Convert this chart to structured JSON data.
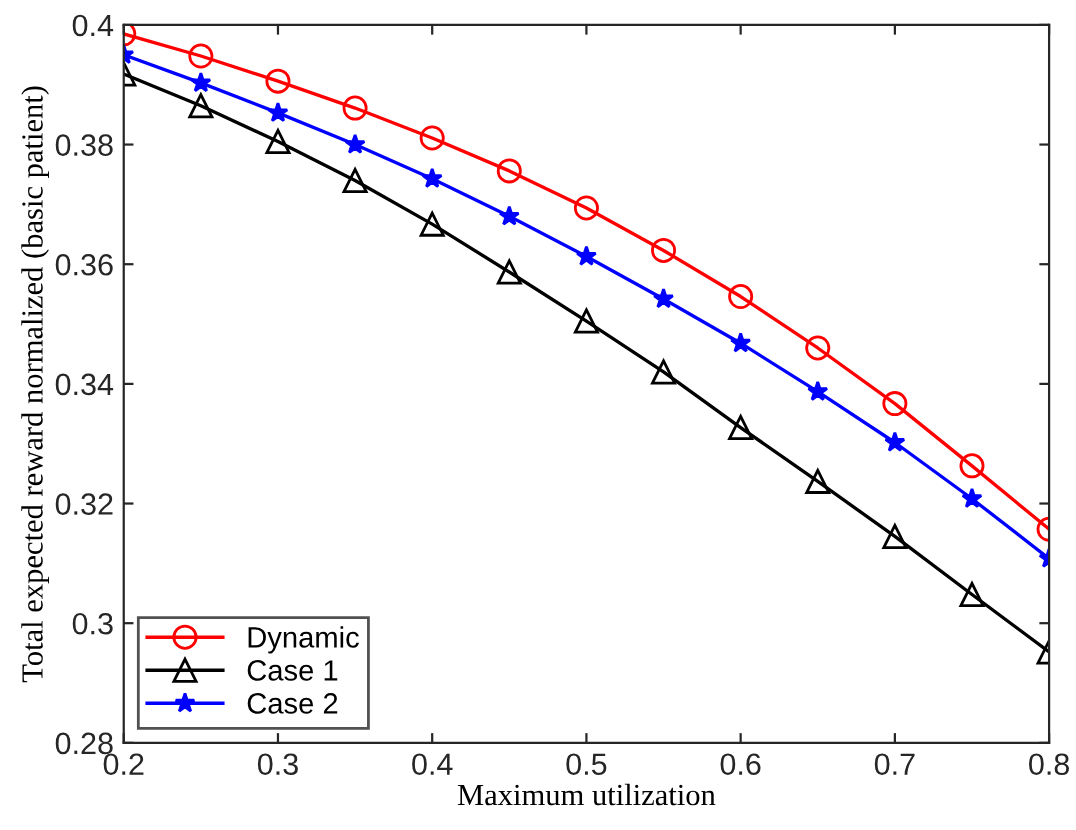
{
  "chart_data": {
    "type": "line",
    "xlabel": "Maximum utilization",
    "ylabel": "Total expected reward normalized (basic patient)",
    "x": [
      0.2,
      0.25,
      0.3,
      0.35,
      0.4,
      0.45,
      0.5,
      0.55,
      0.6,
      0.65,
      0.7,
      0.75,
      0.8
    ],
    "series": [
      {
        "name": "Dynamic",
        "color": "#ff0000",
        "marker": "circle",
        "values": [
          0.3985,
          0.3948,
          0.3906,
          0.3861,
          0.3811,
          0.3756,
          0.3694,
          0.3623,
          0.3546,
          0.346,
          0.3367,
          0.3263,
          0.3157
        ]
      },
      {
        "name": "Case 1",
        "color": "#000000",
        "marker": "triangle",
        "values": [
          0.3918,
          0.3865,
          0.3805,
          0.374,
          0.3667,
          0.3587,
          0.3505,
          0.342,
          0.3327,
          0.3237,
          0.3145,
          0.3048,
          0.2952
        ]
      },
      {
        "name": "Case 2",
        "color": "#0000ff",
        "marker": "star",
        "values": [
          0.395,
          0.3903,
          0.3853,
          0.38,
          0.3743,
          0.368,
          0.3613,
          0.3542,
          0.3468,
          0.3387,
          0.3302,
          0.3208,
          0.3108
        ]
      }
    ],
    "xlim": [
      0.2,
      0.8
    ],
    "xticks": [
      0.2,
      0.3,
      0.4,
      0.5,
      0.6,
      0.7,
      0.8
    ],
    "ylim": [
      0.28,
      0.4
    ],
    "yticks": [
      0.28,
      0.3,
      0.32,
      0.34,
      0.36,
      0.38,
      0.4
    ],
    "grid": false,
    "legend": "bottom left"
  }
}
